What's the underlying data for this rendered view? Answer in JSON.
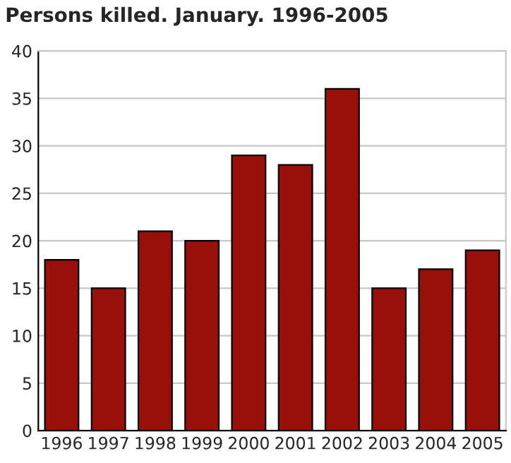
{
  "chart_data": {
    "type": "bar",
    "title": "Persons killed. January. 1996-2005",
    "categories": [
      "1996",
      "1997",
      "1998",
      "1999",
      "2000",
      "2001",
      "2002",
      "2003",
      "2004",
      "2005"
    ],
    "values": [
      18,
      15,
      21,
      20,
      29,
      28,
      36,
      15,
      17,
      19
    ],
    "color": "#990f0a",
    "ylim": [
      0,
      40
    ],
    "yticks": [
      0,
      5,
      10,
      15,
      20,
      25,
      30,
      35,
      40
    ],
    "grid": "y"
  }
}
